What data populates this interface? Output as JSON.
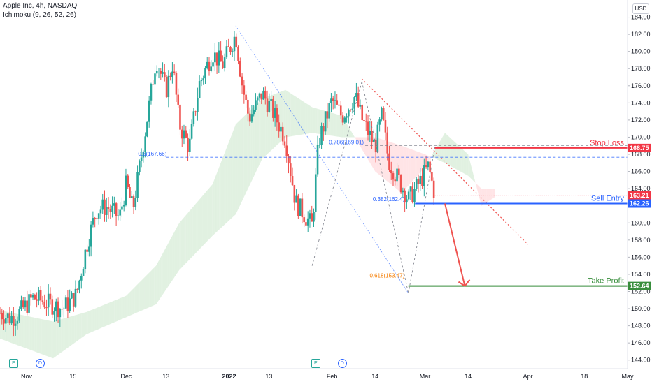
{
  "header": {
    "symbol_line": "Apple Inc, 4h, NASDAQ",
    "indicator_line": "Ichimoku (9, 26, 52, 26)"
  },
  "currency": "USD",
  "colors": {
    "up": "#26a69a",
    "down": "#ef5350",
    "stop_loss": "#f23645",
    "sell_entry": "#2962ff",
    "take_profit": "#388e3c",
    "fib_text": "#2962ff",
    "fib_orange": "#f57c00",
    "cloud_green": "#c8e6c9",
    "cloud_red": "#ffcdd2",
    "last_price": "#f23645"
  },
  "events": [
    {
      "label": "E",
      "kind": "earnings",
      "date": "2021-10-28"
    },
    {
      "label": "D",
      "kind": "dividend",
      "date": "2021-11-05"
    },
    {
      "label": "E",
      "kind": "earnings",
      "date": "2022-01-27"
    },
    {
      "label": "D",
      "kind": "dividend",
      "date": "2022-02-04"
    }
  ],
  "chart_data": {
    "type": "candlestick",
    "interval": "4h",
    "x_axis": {
      "range": [
        "2021-10-24",
        "2022-05-01"
      ],
      "ticks": [
        {
          "label": "Nov",
          "date": "2021-11-01"
        },
        {
          "label": "15",
          "date": "2021-11-15"
        },
        {
          "label": "Dec",
          "date": "2021-12-01"
        },
        {
          "label": "13",
          "date": "2021-12-13"
        },
        {
          "label": "2022",
          "date": "2022-01-01",
          "bold": true
        },
        {
          "label": "13",
          "date": "2022-01-13"
        },
        {
          "label": "Feb",
          "date": "2022-02-01"
        },
        {
          "label": "14",
          "date": "2022-02-14"
        },
        {
          "label": "Mar",
          "date": "2022-03-01"
        },
        {
          "label": "14",
          "date": "2022-03-14"
        },
        {
          "label": "Apr",
          "date": "2022-04-01"
        },
        {
          "label": "18",
          "date": "2022-04-18"
        },
        {
          "label": "May",
          "date": "2022-05-01"
        }
      ]
    },
    "y_axis": {
      "range": [
        143,
        186
      ],
      "ticks": [
        "144.00",
        "146.00",
        "148.00",
        "150.00",
        "152.00",
        "154.00",
        "156.00",
        "158.00",
        "160.00",
        "162.00",
        "164.00",
        "166.00",
        "168.00",
        "170.00",
        "172.00",
        "174.00",
        "176.00",
        "178.00",
        "180.00",
        "182.00",
        "184.00"
      ]
    },
    "price_path": [
      {
        "date": "2021-10-24",
        "close": 149.5
      },
      {
        "date": "2021-10-27",
        "close": 148.9
      },
      {
        "date": "2021-10-29",
        "close": 149.2
      },
      {
        "date": "2021-11-03",
        "close": 151.3
      },
      {
        "date": "2021-11-05",
        "close": 151.0
      },
      {
        "date": "2021-11-09",
        "close": 150.4
      },
      {
        "date": "2021-11-12",
        "close": 150.0
      },
      {
        "date": "2021-11-16",
        "close": 151.6
      },
      {
        "date": "2021-11-19",
        "close": 157.2
      },
      {
        "date": "2021-11-22",
        "close": 161.5
      },
      {
        "date": "2021-11-25",
        "close": 161.9
      },
      {
        "date": "2021-11-29",
        "close": 160.6
      },
      {
        "date": "2021-12-01",
        "close": 164.5
      },
      {
        "date": "2021-12-03",
        "close": 161.5
      },
      {
        "date": "2021-12-07",
        "close": 171.3
      },
      {
        "date": "2021-12-10",
        "close": 179.2
      },
      {
        "date": "2021-12-13",
        "close": 175.4
      },
      {
        "date": "2021-12-15",
        "close": 178.6
      },
      {
        "date": "2021-12-17",
        "close": 171.5
      },
      {
        "date": "2021-12-20",
        "close": 168.8
      },
      {
        "date": "2021-12-23",
        "close": 176.2
      },
      {
        "date": "2021-12-27",
        "close": 179.8
      },
      {
        "date": "2021-12-30",
        "close": 178.4
      },
      {
        "date": "2022-01-03",
        "close": 182.0
      },
      {
        "date": "2022-01-05",
        "close": 176.0
      },
      {
        "date": "2022-01-07",
        "close": 172.2
      },
      {
        "date": "2022-01-11",
        "close": 175.1
      },
      {
        "date": "2022-01-14",
        "close": 173.1
      },
      {
        "date": "2022-01-18",
        "close": 169.8
      },
      {
        "date": "2022-01-21",
        "close": 162.4
      },
      {
        "date": "2022-01-26",
        "close": 159.7
      },
      {
        "date": "2022-01-28",
        "close": 169.6
      },
      {
        "date": "2022-02-01",
        "close": 174.3
      },
      {
        "date": "2022-02-04",
        "close": 172.4
      },
      {
        "date": "2022-02-08",
        "close": 174.8
      },
      {
        "date": "2022-02-10",
        "close": 172.1
      },
      {
        "date": "2022-02-14",
        "close": 168.9
      },
      {
        "date": "2022-02-16",
        "close": 172.6
      },
      {
        "date": "2022-02-18",
        "close": 167.3
      },
      {
        "date": "2022-02-22",
        "close": 164.3
      },
      {
        "date": "2022-02-24",
        "close": 162.7
      },
      {
        "date": "2022-02-28",
        "close": 165.1
      },
      {
        "date": "2022-03-02",
        "close": 166.6
      },
      {
        "date": "2022-03-04",
        "close": 163.2
      }
    ],
    "ichimoku_cloud": [
      {
        "date": "2021-10-24",
        "a": 149.8,
        "b": 146.5
      },
      {
        "date": "2021-11-09",
        "a": 148.5,
        "b": 144.2
      },
      {
        "date": "2021-11-19",
        "a": 149.6,
        "b": 147.0
      },
      {
        "date": "2021-12-01",
        "a": 151.5,
        "b": 149.0
      },
      {
        "date": "2021-12-10",
        "a": 155.0,
        "b": 150.5
      },
      {
        "date": "2021-12-17",
        "a": 160.0,
        "b": 154.5
      },
      {
        "date": "2021-12-27",
        "a": 164.5,
        "b": 158.5
      },
      {
        "date": "2022-01-03",
        "a": 171.5,
        "b": 161.0
      },
      {
        "date": "2022-01-11",
        "a": 174.5,
        "b": 167.5
      },
      {
        "date": "2022-01-18",
        "a": 175.5,
        "b": 170.0
      },
      {
        "date": "2022-01-26",
        "a": 173.5,
        "b": 170.5
      },
      {
        "date": "2022-02-04",
        "a": 172.5,
        "b": 170.0
      },
      {
        "date": "2022-02-14",
        "a": 166.0,
        "b": 170.0
      },
      {
        "date": "2022-02-22",
        "a": 163.5,
        "b": 169.0
      },
      {
        "date": "2022-03-01",
        "a": 166.5,
        "b": 168.0
      },
      {
        "date": "2022-03-07",
        "a": 170.5,
        "b": 167.0
      },
      {
        "date": "2022-03-14",
        "a": 168.0,
        "b": 165.5
      },
      {
        "date": "2022-03-18",
        "a": 162.0,
        "b": 164.0
      },
      {
        "date": "2022-03-22",
        "a": 163.0,
        "b": 164.0
      }
    ],
    "levels": [
      {
        "name": "Stop Loss",
        "value": 168.75,
        "label": "168.75",
        "key": "stop_loss"
      },
      {
        "name": "Sell Entry",
        "value": 162.26,
        "label": "162.26",
        "key": "sell_entry"
      },
      {
        "name": "Take Profit",
        "value": 152.64,
        "label": "152.64",
        "key": "take_profit"
      }
    ],
    "last_price": {
      "value": 163.21,
      "label": "163.21"
    },
    "fib_labels": [
      {
        "text": "0.786(169.01)",
        "value": 169.01,
        "color": "fib_text"
      },
      {
        "text": "0.5(167.66)",
        "value": 167.66,
        "color": "fib_text"
      },
      {
        "text": "0.382(162.4)",
        "value": 162.4,
        "color": "fib_text"
      },
      {
        "text": "0.618(153.47)",
        "value": 153.47,
        "color": "fib_orange"
      }
    ]
  }
}
